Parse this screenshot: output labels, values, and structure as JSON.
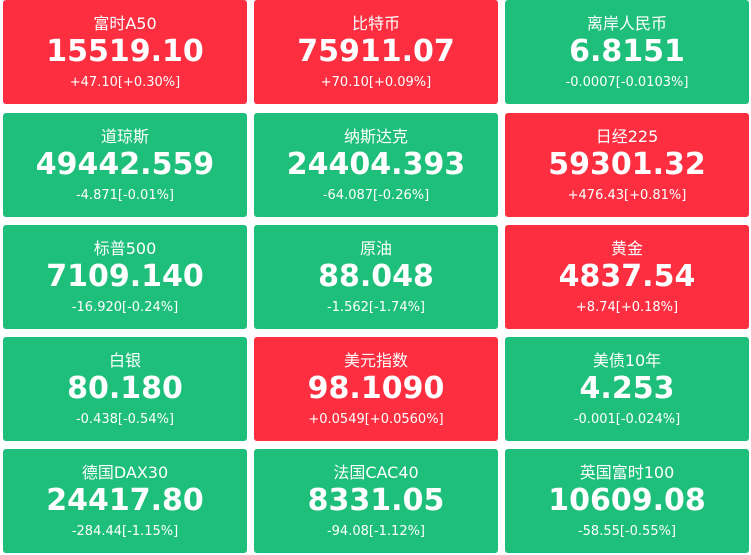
{
  "tiles": [
    {
      "name": "富时A50",
      "price": "15519.10",
      "change": "+47.10[+0.30%]",
      "color": "#fc2e40"
    },
    {
      "name": "比特币",
      "price": "75911.07",
      "change": "+70.10[+0.09%]",
      "color": "#fc2e40"
    },
    {
      "name": "离岸人民币",
      "price": "6.8151",
      "change": "-0.0007[-0.0103%]",
      "color": "#1dbf7a"
    },
    {
      "name": "道琼斯",
      "price": "49442.559",
      "change": "-4.871[-0.01%]",
      "color": "#1dbf7a"
    },
    {
      "name": "纳斯达克",
      "price": "24404.393",
      "change": "-64.087[-0.26%]",
      "color": "#1dbf7a"
    },
    {
      "name": "日经225",
      "price": "59301.32",
      "change": "+476.43[+0.81%]",
      "color": "#fc2e40"
    },
    {
      "name": "标普500",
      "price": "7109.140",
      "change": "-16.920[-0.24%]",
      "color": "#1dbf7a"
    },
    {
      "name": "原油",
      "price": "88.048",
      "change": "-1.562[-1.74%]",
      "color": "#1dbf7a"
    },
    {
      "name": "黄金",
      "price": "4837.54",
      "change": "+8.74[+0.18%]",
      "color": "#fc2e40"
    },
    {
      "name": "白银",
      "price": "80.180",
      "change": "-0.438[-0.54%]",
      "color": "#1dbf7a"
    },
    {
      "name": "美元指数",
      "price": "98.1090",
      "change": "+0.0549[+0.0560%]",
      "color": "#fc2e40"
    },
    {
      "name": "美债10年",
      "price": "4.253",
      "change": "-0.001[-0.024%]",
      "color": "#1dbf7a"
    },
    {
      "name": "德国DAX30",
      "price": "24417.80",
      "change": "-284.44[-1.15%]",
      "color": "#1dbf7a"
    },
    {
      "name": "法国CAC40",
      "price": "8331.05",
      "change": "-94.08[-1.12%]",
      "color": "#1dbf7a"
    },
    {
      "name": "英国富时100",
      "price": "10609.08",
      "change": "-58.55[-0.55%]",
      "color": "#1dbf7a"
    }
  ]
}
